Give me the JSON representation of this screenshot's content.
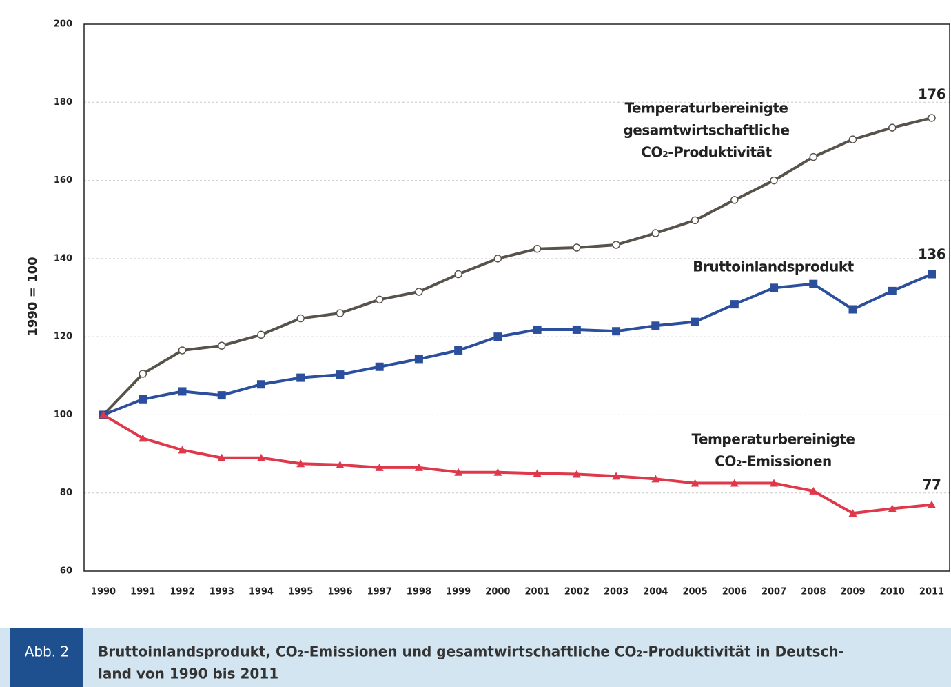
{
  "chart_data": {
    "type": "line",
    "ylabel": "1990 = 100",
    "categories": [
      "1990",
      "1991",
      "1992",
      "1993",
      "1994",
      "1995",
      "1996",
      "1997",
      "1998",
      "1999",
      "2000",
      "2001",
      "2002",
      "2003",
      "2004",
      "2005",
      "2006",
      "2007",
      "2008",
      "2009",
      "2010",
      "2011"
    ],
    "ylim": [
      60,
      200
    ],
    "yticks": [
      60,
      80,
      100,
      120,
      140,
      160,
      180,
      200
    ],
    "grid": true,
    "series": [
      {
        "label": [
          "Temperaturbereinigte",
          "gesamtwirtschaftliche",
          "CO₂-Produktivität"
        ],
        "color": "#57534a",
        "marker": "circle",
        "values": [
          100,
          110.5,
          116.5,
          117.7,
          120.5,
          124.7,
          126,
          129.5,
          131.5,
          136,
          140,
          142.5,
          142.8,
          143.5,
          146.5,
          149.8,
          155,
          160,
          166,
          170.5,
          173.5,
          176
        ],
        "value_labels": [
          null,
          null,
          null,
          null,
          null,
          null,
          null,
          null,
          null,
          null,
          null,
          null,
          null,
          null,
          null,
          null,
          null,
          null,
          null,
          null,
          null,
          "176"
        ]
      },
      {
        "label": [
          "Bruttoinlandsprodukt"
        ],
        "color": "#2b4f9c",
        "marker": "square",
        "values": [
          100,
          104,
          106,
          105,
          107.8,
          109.5,
          110.3,
          112.3,
          114.3,
          116.5,
          120,
          121.8,
          121.8,
          121.4,
          122.8,
          123.8,
          128.3,
          132.5,
          133.5,
          127,
          131.7,
          136
        ],
        "value_labels": [
          null,
          null,
          null,
          null,
          null,
          null,
          null,
          null,
          null,
          null,
          null,
          null,
          null,
          null,
          null,
          null,
          null,
          null,
          null,
          null,
          null,
          "136"
        ]
      },
      {
        "label": [
          "Temperaturbereinigte",
          "CO₂-Emissionen"
        ],
        "color": "#e0384b",
        "marker": "triangle",
        "values": [
          100,
          94,
          91,
          89,
          89,
          87.5,
          87.2,
          86.5,
          86.5,
          85.3,
          85.3,
          85,
          84.8,
          84.3,
          83.6,
          82.5,
          82.5,
          82.5,
          80.5,
          74.8,
          76,
          77
        ],
        "value_labels": [
          null,
          null,
          null,
          null,
          null,
          null,
          null,
          null,
          null,
          null,
          null,
          null,
          null,
          null,
          null,
          null,
          null,
          null,
          null,
          null,
          null,
          "77"
        ]
      }
    ]
  },
  "caption": {
    "tag": "Abb. 2",
    "lines": [
      "Bruttoinlandsprodukt, CO₂-Emissionen und gesamtwirtschaftliche CO₂-Produktivität in Deutsch-",
      "land von 1990 bis 2011"
    ]
  }
}
